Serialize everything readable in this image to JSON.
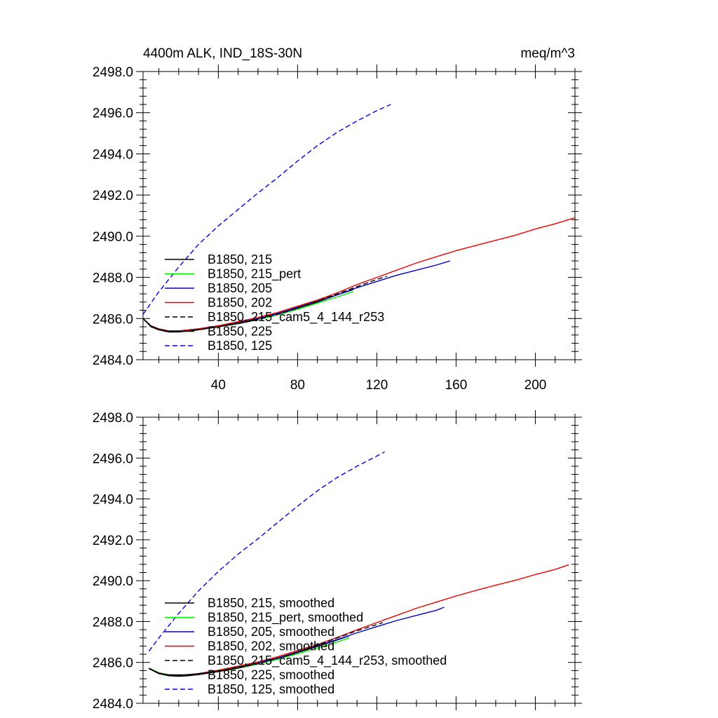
{
  "chart_data": [
    {
      "type": "line",
      "title": "4400m ALK, IND_18S-30N",
      "units_label": "meq/m^3",
      "xlim": [
        2,
        220
      ],
      "ylim": [
        2484.0,
        2498.0
      ],
      "x_ticks": [
        40,
        80,
        120,
        160,
        200
      ],
      "x_tick_labels": [
        "40",
        "80",
        "120",
        "160",
        "200"
      ],
      "y_ticks": [
        2484.0,
        2486.0,
        2488.0,
        2490.0,
        2492.0,
        2494.0,
        2496.0,
        2498.0
      ],
      "y_tick_labels": [
        "2484.0",
        "2486.0",
        "2488.0",
        "2490.0",
        "2492.0",
        "2494.0",
        "2496.0",
        "2498.0"
      ],
      "legend_position": "left",
      "series": [
        {
          "name": "B1850, 215",
          "color": "#000000",
          "dash": "solid",
          "x": [
            2,
            6,
            10,
            15,
            20,
            25,
            30,
            40,
            50,
            60,
            70,
            80,
            90,
            100,
            108
          ],
          "y": [
            2486.0,
            2485.6,
            2485.45,
            2485.35,
            2485.35,
            2485.4,
            2485.45,
            2485.6,
            2485.75,
            2485.95,
            2486.2,
            2486.5,
            2486.8,
            2487.15,
            2487.4
          ]
        },
        {
          "name": "B1850, 215_pert",
          "color": "#00ee00",
          "dash": "solid",
          "x": [
            2,
            6,
            10,
            15,
            20,
            25,
            30,
            40,
            50,
            60,
            70,
            80,
            90,
            100,
            108
          ],
          "y": [
            2486.0,
            2485.65,
            2485.5,
            2485.4,
            2485.4,
            2485.45,
            2485.5,
            2485.62,
            2485.78,
            2485.95,
            2486.18,
            2486.45,
            2486.75,
            2487.05,
            2487.3
          ]
        },
        {
          "name": "B1850, 205",
          "color": "#0000cc",
          "dash": "solid",
          "x": [
            2,
            6,
            10,
            15,
            20,
            30,
            40,
            50,
            60,
            70,
            80,
            90,
            100,
            110,
            120,
            130,
            140,
            150,
            157
          ],
          "y": [
            2486.0,
            2485.65,
            2485.5,
            2485.4,
            2485.4,
            2485.5,
            2485.65,
            2485.8,
            2486.0,
            2486.25,
            2486.55,
            2486.85,
            2487.15,
            2487.5,
            2487.8,
            2488.1,
            2488.35,
            2488.6,
            2488.8
          ]
        },
        {
          "name": "B1850, 202",
          "color": "#ee0000",
          "dash": "solid",
          "x": [
            2,
            6,
            10,
            15,
            20,
            30,
            40,
            50,
            60,
            70,
            80,
            90,
            100,
            110,
            120,
            130,
            140,
            150,
            160,
            170,
            180,
            190,
            200,
            210,
            220
          ],
          "y": [
            2486.0,
            2485.65,
            2485.5,
            2485.4,
            2485.4,
            2485.5,
            2485.65,
            2485.85,
            2486.05,
            2486.3,
            2486.6,
            2486.9,
            2487.25,
            2487.65,
            2488.0,
            2488.35,
            2488.7,
            2489.0,
            2489.3,
            2489.55,
            2489.8,
            2490.05,
            2490.35,
            2490.6,
            2490.9
          ]
        },
        {
          "name": "B1850, 215_cam5_4_144_r253",
          "color": "#000000",
          "dash": "dashed",
          "x": [
            2,
            6,
            10,
            15,
            20,
            30,
            40,
            50,
            60,
            70,
            80,
            90,
            100,
            110,
            120,
            125
          ],
          "y": [
            2486.0,
            2485.6,
            2485.45,
            2485.35,
            2485.35,
            2485.45,
            2485.6,
            2485.75,
            2485.95,
            2486.2,
            2486.5,
            2486.85,
            2487.2,
            2487.55,
            2487.9,
            2488.05
          ]
        },
        {
          "name": "B1850, 225",
          "color": "#000000",
          "dash": "solid",
          "x": [
            2,
            6,
            10,
            15,
            20,
            30,
            40,
            50,
            60
          ],
          "y": [
            2486.0,
            2485.62,
            2485.48,
            2485.38,
            2485.36,
            2485.46,
            2485.6,
            2485.78,
            2485.98
          ]
        },
        {
          "name": "B1850, 125",
          "color": "#0000ee",
          "dash": "dashed",
          "x": [
            2,
            10,
            20,
            30,
            40,
            50,
            60,
            70,
            80,
            90,
            100,
            110,
            120,
            127
          ],
          "y": [
            2486.2,
            2487.3,
            2488.5,
            2489.6,
            2490.5,
            2491.3,
            2492.1,
            2492.85,
            2493.65,
            2494.4,
            2495.05,
            2495.6,
            2496.1,
            2496.4
          ]
        }
      ]
    },
    {
      "type": "line",
      "xlim": [
        2,
        220
      ],
      "ylim": [
        2484.0,
        2498.0
      ],
      "x_ticks": [
        40,
        80,
        120,
        160,
        200
      ],
      "y_ticks": [
        2484.0,
        2486.0,
        2488.0,
        2490.0,
        2492.0,
        2494.0,
        2496.0,
        2498.0
      ],
      "y_tick_labels": [
        "2484.0",
        "2486.0",
        "2488.0",
        "2490.0",
        "2492.0",
        "2494.0",
        "2496.0",
        "2498.0"
      ],
      "legend_position": "bottom-left",
      "series": [
        {
          "name": "B1850, 215, smoothed",
          "color": "#000000",
          "dash": "solid",
          "x": [
            5,
            10,
            15,
            20,
            25,
            30,
            40,
            50,
            60,
            70,
            80,
            90,
            100,
            106
          ],
          "y": [
            2485.7,
            2485.45,
            2485.35,
            2485.32,
            2485.35,
            2485.4,
            2485.55,
            2485.72,
            2485.92,
            2486.18,
            2486.48,
            2486.78,
            2487.1,
            2487.3
          ]
        },
        {
          "name": "B1850, 215_pert, smoothed",
          "color": "#00ee00",
          "dash": "solid",
          "x": [
            5,
            10,
            15,
            20,
            25,
            30,
            40,
            50,
            60,
            70,
            80,
            90,
            100,
            106
          ],
          "y": [
            2485.72,
            2485.5,
            2485.4,
            2485.37,
            2485.4,
            2485.45,
            2485.58,
            2485.75,
            2485.92,
            2486.15,
            2486.42,
            2486.7,
            2487.0,
            2487.2
          ]
        },
        {
          "name": "B1850, 205, smoothed",
          "color": "#0000cc",
          "dash": "solid",
          "x": [
            5,
            10,
            15,
            20,
            30,
            40,
            50,
            60,
            70,
            80,
            90,
            100,
            110,
            120,
            130,
            140,
            150,
            154
          ],
          "y": [
            2485.7,
            2485.48,
            2485.38,
            2485.36,
            2485.45,
            2485.6,
            2485.78,
            2485.98,
            2486.22,
            2486.52,
            2486.82,
            2487.12,
            2487.45,
            2487.75,
            2488.05,
            2488.3,
            2488.55,
            2488.7
          ]
        },
        {
          "name": "B1850, 202, smoothed",
          "color": "#ee0000",
          "dash": "solid",
          "x": [
            5,
            10,
            15,
            20,
            30,
            40,
            50,
            60,
            70,
            80,
            90,
            100,
            110,
            120,
            130,
            140,
            150,
            160,
            170,
            180,
            190,
            200,
            210,
            217
          ],
          "y": [
            2485.7,
            2485.48,
            2485.38,
            2485.36,
            2485.45,
            2485.62,
            2485.82,
            2486.02,
            2486.28,
            2486.58,
            2486.88,
            2487.22,
            2487.6,
            2487.95,
            2488.3,
            2488.65,
            2488.95,
            2489.25,
            2489.52,
            2489.78,
            2490.02,
            2490.3,
            2490.55,
            2490.78
          ]
        },
        {
          "name": "B1850, 215_cam5_4_144_r253, smoothed",
          "color": "#000000",
          "dash": "dashed",
          "x": [
            5,
            10,
            15,
            20,
            30,
            40,
            50,
            60,
            70,
            80,
            90,
            100,
            110,
            120,
            123
          ],
          "y": [
            2485.7,
            2485.45,
            2485.35,
            2485.33,
            2485.42,
            2485.58,
            2485.74,
            2485.94,
            2486.2,
            2486.5,
            2486.85,
            2487.2,
            2487.55,
            2487.85,
            2487.95
          ]
        },
        {
          "name": "B1850, 225, smoothed",
          "color": "#000000",
          "dash": "solid",
          "x": [
            5,
            10,
            15,
            20,
            30,
            40,
            50,
            58
          ],
          "y": [
            2485.72,
            2485.47,
            2485.37,
            2485.35,
            2485.44,
            2485.58,
            2485.76,
            2485.92
          ]
        },
        {
          "name": "B1850, 125, smoothed",
          "color": "#0000ee",
          "dash": "dashed",
          "x": [
            5,
            10,
            20,
            30,
            40,
            50,
            60,
            70,
            80,
            90,
            100,
            110,
            120,
            124
          ],
          "y": [
            2486.55,
            2487.2,
            2488.4,
            2489.5,
            2490.45,
            2491.3,
            2492.05,
            2492.85,
            2493.65,
            2494.4,
            2495.05,
            2495.6,
            2496.1,
            2496.3
          ]
        }
      ]
    }
  ]
}
